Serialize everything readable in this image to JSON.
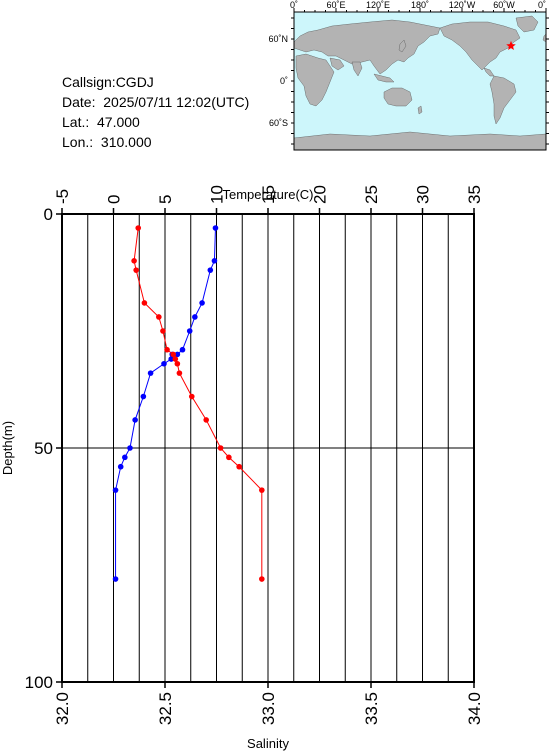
{
  "header": {
    "callsign": "Callsign:CGDJ",
    "date": "Date:  2025/07/11 12:02(UTC)",
    "lat": "Lat.:  47.000",
    "lon": "Lon.:  310.000"
  },
  "map": {
    "lon_labels": [
      "0˚",
      "60˚E",
      "120˚E",
      "180˚",
      "120˚W",
      "60˚W",
      "0˚"
    ],
    "lat_labels": [
      "60˚N",
      "0˚",
      "60˚S"
    ],
    "station_marker": "red star",
    "colors": {
      "ocean": "#cdf6fb",
      "land": "#b3b3b3",
      "marker": "#ff0000"
    }
  },
  "chart_data": {
    "type": "line",
    "title": "",
    "ylabel": "Depth(m)",
    "xlabel_top": "Temperature(C)",
    "xlabel_bottom": "Salinity",
    "ylim": [
      0,
      100
    ],
    "y_inverted": true,
    "temperature_lim": [
      -5,
      35
    ],
    "salinity_lim": [
      32.0,
      34.0
    ],
    "y_ticks": [
      "0",
      "50",
      "100"
    ],
    "temperature_ticks": [
      "-5",
      "0",
      "5",
      "10",
      "15",
      "20",
      "25",
      "30",
      "35"
    ],
    "salinity_ticks": [
      "32.0",
      "32.5",
      "33.0",
      "33.5",
      "34.0"
    ],
    "grid": true,
    "series": [
      {
        "quantity": "temperature",
        "color": "#0000ff",
        "points": [
          {
            "x": 9.9,
            "y": 3
          },
          {
            "x": 9.8,
            "y": 10
          },
          {
            "x": 9.4,
            "y": 12
          },
          {
            "x": 8.6,
            "y": 19
          },
          {
            "x": 7.9,
            "y": 22
          },
          {
            "x": 7.4,
            "y": 25
          },
          {
            "x": 6.7,
            "y": 29
          },
          {
            "x": 6.2,
            "y": 30
          },
          {
            "x": 5.7,
            "y": 30
          },
          {
            "x": 5.6,
            "y": 31
          },
          {
            "x": 4.9,
            "y": 32
          },
          {
            "x": 3.6,
            "y": 34
          },
          {
            "x": 2.9,
            "y": 39
          },
          {
            "x": 2.1,
            "y": 44
          },
          {
            "x": 1.6,
            "y": 50
          },
          {
            "x": 1.1,
            "y": 52
          },
          {
            "x": 0.7,
            "y": 54
          },
          {
            "x": 0.2,
            "y": 59
          },
          {
            "x": 0.2,
            "y": 78
          }
        ]
      },
      {
        "quantity": "salinity",
        "color": "#ff0000",
        "points": [
          {
            "x": 32.37,
            "y": 3
          },
          {
            "x": 32.35,
            "y": 10
          },
          {
            "x": 32.36,
            "y": 12
          },
          {
            "x": 32.4,
            "y": 19
          },
          {
            "x": 32.47,
            "y": 22
          },
          {
            "x": 32.49,
            "y": 25
          },
          {
            "x": 32.51,
            "y": 29
          },
          {
            "x": 32.54,
            "y": 30
          },
          {
            "x": 32.55,
            "y": 31
          },
          {
            "x": 32.56,
            "y": 32
          },
          {
            "x": 32.57,
            "y": 34
          },
          {
            "x": 32.63,
            "y": 39
          },
          {
            "x": 32.7,
            "y": 44
          },
          {
            "x": 32.77,
            "y": 50
          },
          {
            "x": 32.81,
            "y": 52
          },
          {
            "x": 32.86,
            "y": 54
          },
          {
            "x": 32.97,
            "y": 59
          },
          {
            "x": 32.97,
            "y": 78
          }
        ]
      }
    ]
  }
}
